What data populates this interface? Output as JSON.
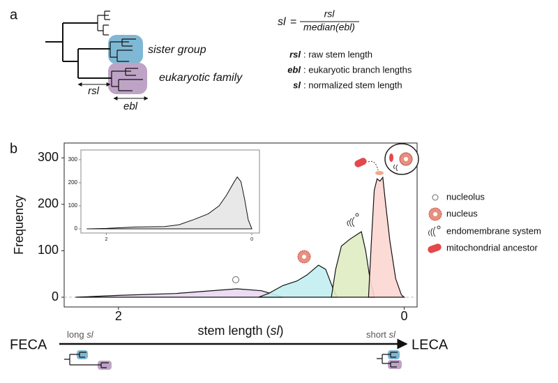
{
  "panel_a": {
    "label": "a",
    "tree_labels": {
      "sister": "sister group",
      "family": "eukaryotic family",
      "rsl": "rsl",
      "ebl": "ebl"
    },
    "formula": {
      "lhs": "sl",
      "eq": "=",
      "numerator": "rsl",
      "denominator": "median(ebl)"
    },
    "definitions": [
      {
        "term": "rsl",
        "text": ": raw stem length"
      },
      {
        "term": "ebl",
        "text": ": eukaryotic branch lengths"
      },
      {
        "term": "sl",
        "text": ": normalized stem length"
      }
    ]
  },
  "chart_data": {
    "type": "area",
    "panel_label": "b",
    "y_label": "Frequency",
    "x_label": [
      "stem length (",
      "sl",
      ")"
    ],
    "xlim": [
      2.38,
      -0.09
    ],
    "ylim": [
      -21,
      332
    ],
    "xticks": [
      2,
      0
    ],
    "yticks": [
      0,
      100,
      200,
      300
    ],
    "series": [
      {
        "name": "nucleolus",
        "color": "#ead8f2",
        "x": [
          2.3,
          2.0,
          1.6,
          1.3,
          1.17,
          1.0,
          0.9,
          0.85
        ],
        "values": [
          0,
          4,
          8,
          15,
          18,
          14,
          5,
          0
        ]
      },
      {
        "name": "nucleus",
        "color": "#c2eef1",
        "x": [
          1.02,
          0.95,
          0.85,
          0.75,
          0.68,
          0.6,
          0.55,
          0.5,
          0.47
        ],
        "values": [
          0,
          8,
          25,
          35,
          48,
          69,
          60,
          20,
          0
        ]
      },
      {
        "name": "endomembrane system",
        "color": "#deecc2",
        "x": [
          0.51,
          0.48,
          0.44,
          0.38,
          0.33,
          0.3,
          0.27,
          0.24,
          0.21
        ],
        "values": [
          0,
          60,
          110,
          125,
          135,
          141,
          100,
          40,
          0
        ]
      },
      {
        "name": "mitochondrial ancestor",
        "color": "#fcd6d1",
        "x": [
          0.25,
          0.23,
          0.21,
          0.19,
          0.17,
          0.15,
          0.13,
          0.1,
          0.06,
          0.02,
          0.0
        ],
        "values": [
          0,
          120,
          230,
          255,
          250,
          258,
          200,
          120,
          40,
          5,
          0
        ]
      }
    ]
  },
  "inset": {
    "type": "area",
    "color": "#e6e6e6",
    "xlim": [
      2.35,
      -0.105
    ],
    "ylim": [
      -18,
      342
    ],
    "xticks": [
      2,
      0
    ],
    "yticks": [
      0,
      100,
      200,
      300
    ],
    "x": [
      2.27,
      2.0,
      1.6,
      1.2,
      1.0,
      0.8,
      0.6,
      0.45,
      0.35,
      0.25,
      0.2,
      0.15,
      0.1,
      0.05,
      0.0
    ],
    "values": [
      0,
      2,
      8,
      10,
      18,
      40,
      65,
      100,
      145,
      200,
      225,
      205,
      130,
      40,
      0
    ]
  },
  "timeline": {
    "start": "FECA",
    "end": "LECA",
    "left_label": [
      "long ",
      "sl"
    ],
    "right_label": [
      "short ",
      "sl"
    ]
  }
}
